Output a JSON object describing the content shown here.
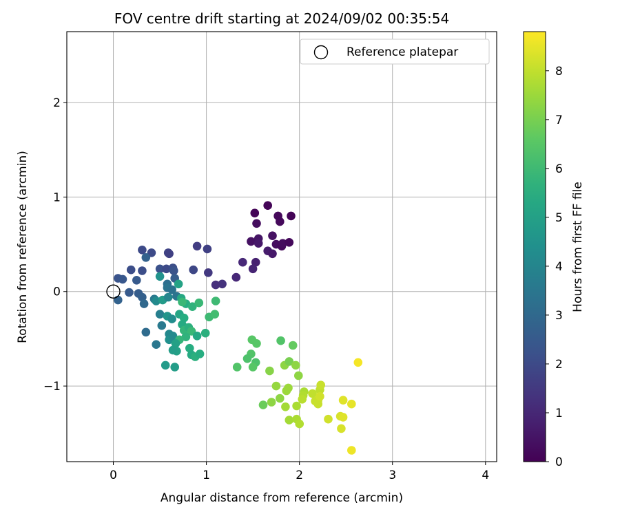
{
  "chart_data": {
    "type": "scatter",
    "title": "FOV centre drift starting at 2024/09/02 00:35:54",
    "xlabel": "Angular distance from reference (arcmin)",
    "ylabel": "Rotation from reference (arcmin)",
    "xlim": [
      -0.5,
      4.12
    ],
    "ylim": [
      -1.8,
      2.75
    ],
    "xticks": [
      0,
      1,
      2,
      3,
      4
    ],
    "yticks": [
      -1,
      0,
      1,
      2
    ],
    "grid": true,
    "legend": {
      "placement": "top-right",
      "entries": [
        "Reference platepar"
      ]
    },
    "colorbar": {
      "label": "Hours from first FF file",
      "colormap": "viridis",
      "range": [
        0,
        8.8
      ],
      "ticks": [
        0,
        1,
        2,
        3,
        4,
        5,
        6,
        7,
        8
      ]
    },
    "reference_point": {
      "x": 0,
      "y": 0
    },
    "points": [
      [
        1.52,
        0.83,
        0.1
      ],
      [
        1.66,
        0.91,
        0.1
      ],
      [
        1.77,
        0.8,
        0.2
      ],
      [
        1.79,
        0.74,
        0.2
      ],
      [
        1.91,
        0.8,
        0.1
      ],
      [
        1.54,
        0.72,
        0.3
      ],
      [
        1.48,
        0.53,
        0.4
      ],
      [
        1.56,
        0.56,
        0.5
      ],
      [
        1.56,
        0.51,
        0.6
      ],
      [
        1.71,
        0.59,
        0.4
      ],
      [
        1.75,
        0.5,
        0.3
      ],
      [
        1.81,
        0.48,
        0.2
      ],
      [
        1.82,
        0.51,
        0.3
      ],
      [
        1.89,
        0.52,
        0.2
      ],
      [
        1.66,
        0.43,
        0.7
      ],
      [
        1.71,
        0.4,
        0.6
      ],
      [
        1.53,
        0.31,
        0.8
      ],
      [
        1.5,
        0.24,
        0.9
      ],
      [
        1.39,
        0.31,
        1.0
      ],
      [
        1.32,
        0.15,
        1.0
      ],
      [
        1.17,
        0.08,
        1.3
      ],
      [
        1.1,
        0.07,
        1.2
      ],
      [
        1.02,
        0.2,
        1.5
      ],
      [
        0.9,
        0.48,
        1.6
      ],
      [
        1.01,
        0.45,
        1.7
      ],
      [
        0.86,
        0.23,
        1.9
      ],
      [
        0.59,
        0.41,
        1.8
      ],
      [
        0.6,
        0.4,
        1.7
      ],
      [
        0.31,
        0.44,
        2.0
      ],
      [
        0.41,
        0.41,
        2.0
      ],
      [
        0.35,
        0.36,
        2.8
      ],
      [
        0.19,
        0.23,
        2.1
      ],
      [
        0.31,
        0.22,
        2.1
      ],
      [
        0.5,
        0.24,
        2.2
      ],
      [
        0.57,
        0.24,
        2.0
      ],
      [
        0.64,
        0.25,
        2.1
      ],
      [
        0.65,
        0.22,
        2.3
      ],
      [
        0.66,
        0.14,
        2.6
      ],
      [
        0.25,
        0.12,
        2.5
      ],
      [
        0.05,
        0.14,
        2.3
      ],
      [
        0.1,
        0.13,
        2.4
      ],
      [
        0.17,
        -0.01,
        2.5
      ],
      [
        0.27,
        -0.02,
        2.6
      ],
      [
        0.31,
        -0.06,
        2.7
      ],
      [
        0.05,
        -0.09,
        2.8
      ],
      [
        0.33,
        -0.13,
        3.0
      ],
      [
        0.58,
        0.08,
        3.2
      ],
      [
        0.58,
        0.04,
        3.4
      ],
      [
        0.63,
        0.02,
        3.3
      ],
      [
        0.68,
        -0.05,
        3.4
      ],
      [
        0.5,
        0.16,
        4.5
      ],
      [
        0.44,
        -0.08,
        3.6
      ],
      [
        0.46,
        -0.1,
        4.2
      ],
      [
        0.53,
        -0.09,
        4.8
      ],
      [
        0.59,
        -0.06,
        4.0
      ],
      [
        0.5,
        -0.24,
        3.8
      ],
      [
        0.58,
        -0.26,
        4.6
      ],
      [
        0.63,
        -0.29,
        4.3
      ],
      [
        0.35,
        -0.43,
        3.1
      ],
      [
        0.46,
        -0.56,
        3.5
      ],
      [
        0.52,
        -0.36,
        3.6
      ],
      [
        0.6,
        -0.45,
        4.1
      ],
      [
        0.6,
        -0.51,
        4.4
      ],
      [
        0.64,
        -0.47,
        4.2
      ],
      [
        0.7,
        0.08,
        5.1
      ],
      [
        0.73,
        -0.07,
        5.3
      ],
      [
        0.78,
        -0.13,
        5.5
      ],
      [
        0.85,
        -0.16,
        5.7
      ],
      [
        0.92,
        -0.12,
        5.9
      ],
      [
        0.71,
        -0.24,
        5.2
      ],
      [
        0.76,
        -0.28,
        5.5
      ],
      [
        0.74,
        -0.35,
        5.4
      ],
      [
        0.76,
        -0.41,
        5.8
      ],
      [
        0.81,
        -0.38,
        5.6
      ],
      [
        0.84,
        -0.42,
        5.9
      ],
      [
        0.78,
        -0.48,
        5.7
      ],
      [
        0.71,
        -0.51,
        5.8
      ],
      [
        0.67,
        -0.55,
        5.0
      ],
      [
        0.68,
        -0.63,
        5.0
      ],
      [
        0.64,
        -0.62,
        4.9
      ],
      [
        0.56,
        -0.78,
        4.8
      ],
      [
        0.66,
        -0.8,
        4.9
      ],
      [
        0.82,
        -0.6,
        5.5
      ],
      [
        0.84,
        -0.67,
        5.4
      ],
      [
        0.88,
        -0.69,
        5.6
      ],
      [
        0.93,
        -0.66,
        5.5
      ],
      [
        0.9,
        -0.47,
        5.3
      ],
      [
        0.99,
        -0.44,
        5.6
      ],
      [
        1.03,
        -0.27,
        6.0
      ],
      [
        1.09,
        -0.24,
        6.1
      ],
      [
        1.1,
        -0.1,
        6.0
      ],
      [
        0.74,
        -0.11,
        5.9
      ],
      [
        1.49,
        -0.51,
        6.5
      ],
      [
        1.54,
        -0.55,
        6.5
      ],
      [
        1.48,
        -0.66,
        6.4
      ],
      [
        1.44,
        -0.71,
        6.3
      ],
      [
        1.53,
        -0.75,
        6.3
      ],
      [
        1.33,
        -0.8,
        6.4
      ],
      [
        1.5,
        -0.8,
        6.5
      ],
      [
        1.8,
        -0.52,
        6.4
      ],
      [
        1.93,
        -0.57,
        6.7
      ],
      [
        1.68,
        -0.84,
        7.2
      ],
      [
        1.84,
        -0.78,
        7.3
      ],
      [
        1.89,
        -0.74,
        7.0
      ],
      [
        1.96,
        -0.78,
        7.3
      ],
      [
        1.99,
        -0.89,
        7.3
      ],
      [
        1.75,
        -1.0,
        7.4
      ],
      [
        1.88,
        -1.02,
        7.5
      ],
      [
        1.86,
        -1.05,
        7.5
      ],
      [
        1.61,
        -1.2,
        6.8
      ],
      [
        1.7,
        -1.17,
        7.3
      ],
      [
        1.79,
        -1.13,
        7.3
      ],
      [
        1.85,
        -1.22,
        7.6
      ],
      [
        1.89,
        -1.36,
        7.6
      ],
      [
        1.97,
        -1.35,
        7.7
      ],
      [
        2.0,
        -1.4,
        7.8
      ],
      [
        1.97,
        -1.21,
        7.7
      ],
      [
        2.05,
        -1.06,
        7.7
      ],
      [
        2.04,
        -1.1,
        7.8
      ],
      [
        2.03,
        -1.14,
        7.9
      ],
      [
        2.14,
        -1.08,
        8.0
      ],
      [
        2.17,
        -1.16,
        8.1
      ],
      [
        2.22,
        -1.04,
        8.0
      ],
      [
        2.23,
        -0.99,
        8.1
      ],
      [
        2.2,
        -1.15,
        8.1
      ],
      [
        2.2,
        -1.19,
        8.1
      ],
      [
        2.22,
        -1.11,
        8.2
      ],
      [
        2.31,
        -1.35,
        8.2
      ],
      [
        2.44,
        -1.32,
        8.3
      ],
      [
        2.47,
        -1.33,
        8.4
      ],
      [
        2.45,
        -1.45,
        8.3
      ],
      [
        2.47,
        -1.15,
        8.4
      ],
      [
        2.56,
        -1.19,
        8.5
      ],
      [
        2.63,
        -0.75,
        8.7
      ],
      [
        2.56,
        -1.68,
        8.6
      ]
    ]
  }
}
